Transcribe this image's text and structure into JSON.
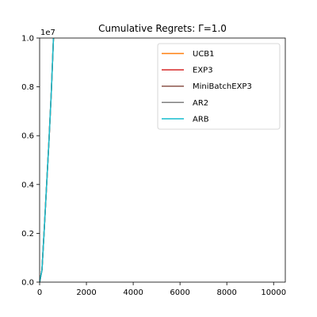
{
  "chart_data": {
    "type": "line",
    "title": "Cumulative Regrets: Γ=1.0",
    "xlabel": "",
    "ylabel": "",
    "xlim": [
      0,
      10500
    ],
    "ylim": [
      0,
      1.0
    ],
    "y_offset_label": "1e7",
    "x_ticks": [
      0,
      2000,
      4000,
      6000,
      8000,
      10000
    ],
    "x_tick_labels": [
      "0",
      "2000",
      "4000",
      "6000",
      "8000",
      "10000"
    ],
    "y_ticks": [
      0.0,
      0.2,
      0.4,
      0.6,
      0.8,
      1.0
    ],
    "y_tick_labels": [
      "0.0",
      "0.2",
      "0.4",
      "0.6",
      "0.8",
      "1.0"
    ],
    "grid": false,
    "legend_position": "top-right",
    "series": [
      {
        "name": "UCB1",
        "color": "#ff7f0e",
        "x": [
          0,
          100,
          200,
          300,
          400,
          500,
          550,
          600
        ],
        "y": [
          0.0,
          0.05,
          0.22,
          0.4,
          0.58,
          0.78,
          0.9,
          1.02
        ]
      },
      {
        "name": "EXP3",
        "color": "#d62728",
        "x": [
          0,
          100,
          200,
          300,
          400,
          500,
          550,
          600
        ],
        "y": [
          0.0,
          0.05,
          0.22,
          0.4,
          0.58,
          0.78,
          0.9,
          1.02
        ]
      },
      {
        "name": "MiniBatchEXP3",
        "color": "#8c564b",
        "x": [
          0,
          100,
          200,
          300,
          400,
          500,
          550,
          600
        ],
        "y": [
          0.0,
          0.05,
          0.22,
          0.4,
          0.58,
          0.78,
          0.9,
          1.02
        ]
      },
      {
        "name": "AR2",
        "color": "#7f7f7f",
        "x": [
          0,
          100,
          200,
          300,
          400,
          500,
          550,
          600
        ],
        "y": [
          0.0,
          0.05,
          0.22,
          0.4,
          0.58,
          0.78,
          0.9,
          1.02
        ]
      },
      {
        "name": "ARB",
        "color": "#17becf",
        "x": [
          0,
          100,
          200,
          300,
          400,
          500,
          550,
          600
        ],
        "y": [
          0.0,
          0.05,
          0.22,
          0.4,
          0.58,
          0.78,
          0.9,
          1.02
        ]
      }
    ]
  }
}
